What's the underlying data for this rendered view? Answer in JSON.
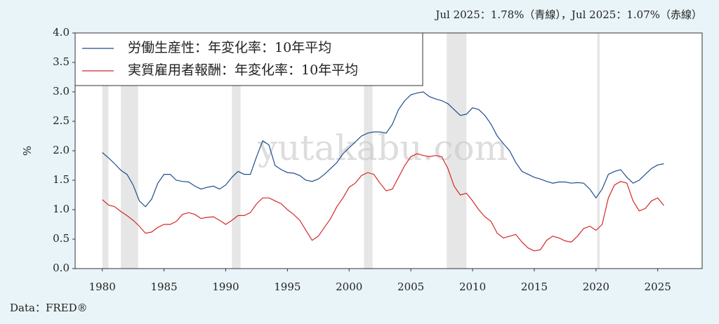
{
  "chart_data": {
    "type": "line",
    "annotation": "Jul 2025：1.78%（青線），Jul 2025：1.07%（赤線）",
    "source": "Data：FRED®",
    "watermark": "yutakabu.com",
    "ylabel": "%",
    "x": [
      1980,
      1980.5,
      1981,
      1981.5,
      1982,
      1982.5,
      1983,
      1983.5,
      1984,
      1984.5,
      1985,
      1985.5,
      1986,
      1986.5,
      1987,
      1987.5,
      1988,
      1988.5,
      1989,
      1989.5,
      1990,
      1990.5,
      1991,
      1991.5,
      1992,
      1992.5,
      1993,
      1993.5,
      1994,
      1994.5,
      1995,
      1995.5,
      1996,
      1996.5,
      1997,
      1997.5,
      1998,
      1998.5,
      1999,
      1999.5,
      2000,
      2000.5,
      2001,
      2001.5,
      2002,
      2002.5,
      2003,
      2003.5,
      2004,
      2004.5,
      2005,
      2005.5,
      2006,
      2006.5,
      2007,
      2007.5,
      2008,
      2008.5,
      2009,
      2009.5,
      2010,
      2010.5,
      2011,
      2011.5,
      2012,
      2012.5,
      2013,
      2013.5,
      2014,
      2014.5,
      2015,
      2015.5,
      2016,
      2016.5,
      2017,
      2017.5,
      2018,
      2018.5,
      2019,
      2019.5,
      2020,
      2020.5,
      2021,
      2021.5,
      2022,
      2022.5,
      2023,
      2023.5,
      2024,
      2024.5,
      2025,
      2025.5
    ],
    "series": [
      {
        "name": "労働生産性：年変化率：10年平均",
        "color": "#1f4e8c",
        "values": [
          1.97,
          1.88,
          1.78,
          1.67,
          1.6,
          1.42,
          1.15,
          1.05,
          1.18,
          1.45,
          1.6,
          1.6,
          1.5,
          1.48,
          1.47,
          1.4,
          1.35,
          1.38,
          1.4,
          1.35,
          1.42,
          1.55,
          1.65,
          1.6,
          1.6,
          1.9,
          2.17,
          2.1,
          1.75,
          1.68,
          1.63,
          1.62,
          1.58,
          1.5,
          1.48,
          1.52,
          1.6,
          1.7,
          1.8,
          1.95,
          2.05,
          2.15,
          2.25,
          2.3,
          2.32,
          2.32,
          2.3,
          2.45,
          2.7,
          2.85,
          2.95,
          2.98,
          3.0,
          2.92,
          2.88,
          2.85,
          2.8,
          2.7,
          2.6,
          2.62,
          2.73,
          2.7,
          2.6,
          2.45,
          2.25,
          2.12,
          2.0,
          1.8,
          1.65,
          1.6,
          1.55,
          1.52,
          1.48,
          1.45,
          1.47,
          1.47,
          1.45,
          1.46,
          1.45,
          1.35,
          1.2,
          1.35,
          1.6,
          1.65,
          1.68,
          1.55,
          1.45,
          1.5,
          1.6,
          1.7,
          1.76,
          1.78
        ]
      },
      {
        "name": "実質雇用者報酬：年変化率：10年平均",
        "color": "#d62728",
        "values": [
          1.17,
          1.08,
          1.05,
          0.97,
          0.9,
          0.82,
          0.72,
          0.6,
          0.62,
          0.7,
          0.75,
          0.75,
          0.8,
          0.92,
          0.95,
          0.92,
          0.85,
          0.87,
          0.88,
          0.82,
          0.75,
          0.82,
          0.9,
          0.9,
          0.95,
          1.1,
          1.2,
          1.2,
          1.15,
          1.1,
          1.0,
          0.92,
          0.82,
          0.65,
          0.48,
          0.55,
          0.7,
          0.85,
          1.05,
          1.2,
          1.38,
          1.45,
          1.58,
          1.63,
          1.6,
          1.45,
          1.32,
          1.35,
          1.55,
          1.75,
          1.9,
          1.95,
          1.92,
          1.9,
          1.92,
          1.9,
          1.7,
          1.4,
          1.25,
          1.28,
          1.15,
          1.0,
          0.88,
          0.8,
          0.6,
          0.52,
          0.55,
          0.58,
          0.45,
          0.35,
          0.3,
          0.32,
          0.48,
          0.55,
          0.52,
          0.47,
          0.45,
          0.55,
          0.68,
          0.72,
          0.65,
          0.75,
          1.2,
          1.42,
          1.48,
          1.45,
          1.15,
          0.98,
          1.02,
          1.15,
          1.2,
          1.07
        ]
      }
    ],
    "recessions": [
      [
        1980,
        1980.5
      ],
      [
        1981.5,
        1982.9
      ],
      [
        1990.5,
        1991.2
      ],
      [
        2001.2,
        2001.9
      ],
      [
        2007.9,
        2009.5
      ],
      [
        2020.1,
        2020.3
      ]
    ],
    "recession_color": "#e6e6e6",
    "xlim": [
      1977.8,
      2028.6
    ],
    "xticks": [
      1980,
      1985,
      1990,
      1995,
      2000,
      2005,
      2010,
      2015,
      2020,
      2025
    ],
    "ylim": [
      0,
      4
    ],
    "yticks": [
      {
        "value": 0,
        "label": "0.0"
      },
      0.5,
      {
        "value": 1,
        "label": "1.0"
      },
      1.5,
      {
        "value": 2,
        "label": "2.0"
      },
      2.5,
      {
        "value": 3,
        "label": "3.0"
      },
      3.5,
      {
        "value": 4,
        "label": "4.0"
      }
    ]
  }
}
